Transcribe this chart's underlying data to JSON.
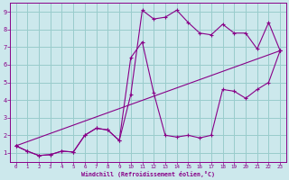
{
  "xlabel": "Windchill (Refroidissement éolien,°C)",
  "background_color": "#cce8ec",
  "grid_color": "#99cccc",
  "line_color": "#880088",
  "xlim": [
    -0.5,
    23.5
  ],
  "ylim": [
    0.5,
    9.5
  ],
  "xticks": [
    0,
    1,
    2,
    3,
    4,
    5,
    6,
    7,
    8,
    9,
    10,
    11,
    12,
    13,
    14,
    15,
    16,
    17,
    18,
    19,
    20,
    21,
    22,
    23
  ],
  "yticks": [
    1,
    2,
    3,
    4,
    5,
    6,
    7,
    8,
    9
  ],
  "series1_x": [
    0,
    1,
    2,
    3,
    4,
    5,
    6,
    7,
    8,
    9,
    10,
    11,
    12,
    13,
    14,
    15,
    16,
    17,
    18,
    19,
    20,
    21,
    22,
    23
  ],
  "series1_y": [
    1.4,
    1.1,
    0.85,
    0.9,
    1.1,
    1.05,
    2.0,
    2.4,
    2.3,
    1.7,
    4.3,
    9.1,
    8.6,
    8.7,
    9.1,
    8.4,
    7.8,
    7.7,
    8.3,
    7.8,
    7.8,
    6.9,
    8.4,
    6.8
  ],
  "series2_x": [
    0,
    1,
    2,
    3,
    4,
    5,
    6,
    7,
    8,
    9,
    10,
    11,
    12,
    13,
    14,
    15,
    16,
    17,
    18,
    19,
    20,
    21,
    22,
    23
  ],
  "series2_y": [
    1.4,
    1.1,
    0.85,
    0.9,
    1.1,
    1.05,
    2.0,
    2.4,
    2.3,
    1.7,
    6.4,
    7.3,
    4.4,
    2.0,
    1.9,
    2.0,
    1.85,
    2.0,
    4.6,
    4.5,
    4.1,
    4.6,
    5.0,
    6.8
  ],
  "series3_x": [
    0,
    23
  ],
  "series3_y": [
    1.4,
    6.8
  ]
}
